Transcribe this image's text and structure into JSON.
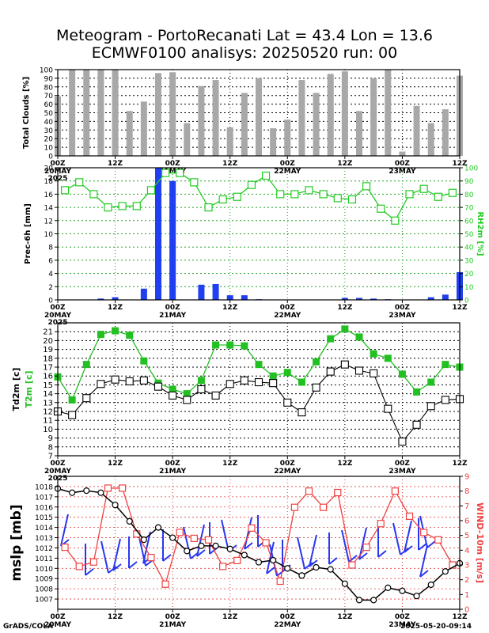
{
  "title_line1": "Meteogram - PortoRecanati Lat = 43.4 Lon = 13.6",
  "title_line2": "ECMWF0100 analisys: 20250520 run: 00",
  "footer_left": "GrADS/COLA",
  "footer_right": "2025-05-20-09:14",
  "colors": {
    "bar_gray": "#a8a8a8",
    "bar_blue": "#1f3ff0",
    "rh_green": "#22cc22",
    "t2m_green": "#22c022",
    "wind_blue": "#2838f0",
    "mslp_red": "#f04040",
    "grid_red": "#e04040",
    "grid_green": "#20a020"
  },
  "time_axis": {
    "tick_labels": [
      "00Z",
      "12Z",
      "00Z",
      "12Z",
      "00Z",
      "12Z",
      "00Z",
      "12Z"
    ],
    "date_labels": [
      [
        "20MAY",
        "2025"
      ],
      [
        "21MAY",
        ""
      ],
      [
        "22MAY",
        ""
      ],
      [
        "23MAY",
        ""
      ]
    ]
  },
  "chart_data": [
    {
      "type": "bar",
      "ylabel": "Total Clouds [%]",
      "ylim": [
        0,
        100
      ],
      "yticks": [
        "0",
        "10",
        "20",
        "30",
        "40",
        "50",
        "60",
        "70",
        "80",
        "90",
        "100"
      ],
      "values": [
        69,
        100,
        100,
        100,
        100,
        52,
        63,
        96,
        97,
        38,
        81,
        88,
        33,
        73,
        90,
        32,
        42,
        88,
        73,
        95,
        98,
        52,
        90,
        100,
        5,
        58,
        38,
        54,
        93
      ]
    },
    {
      "type": "bar",
      "ylabel": "Prec-6h [mm]",
      "ylim": [
        0,
        20
      ],
      "yticks": [
        "0",
        "2",
        "4",
        "6",
        "8",
        "10",
        "12",
        "14",
        "16",
        "18",
        "20"
      ],
      "values": [
        0,
        0,
        0,
        0.2,
        0.4,
        0,
        1.7,
        20,
        18,
        0,
        2.3,
        2.4,
        0.7,
        0.7,
        0.1,
        0,
        0,
        0,
        0,
        0,
        0.3,
        0.3,
        0.2,
        0.1,
        0,
        0,
        0.4,
        0.8,
        4.2
      ],
      "series2": {
        "type": "line",
        "name": "RH2m [%]",
        "ylim": [
          0,
          100
        ],
        "yticks": [
          "0",
          "10",
          "20",
          "30",
          "40",
          "50",
          "60",
          "70",
          "80",
          "90",
          "100"
        ],
        "values": [
          83,
          89,
          80,
          70,
          71,
          71,
          83,
          96,
          96,
          89,
          70,
          76,
          78,
          87,
          94,
          80,
          80,
          83,
          80,
          77,
          76,
          86,
          69,
          60,
          80,
          84,
          78,
          81
        ]
      }
    },
    {
      "type": "line",
      "ylabel": "Td2m [c]",
      "ylabel2": "T2m [c]",
      "ylim": [
        7,
        22
      ],
      "yticks": [
        "7",
        "8",
        "9",
        "10",
        "11",
        "12",
        "13",
        "14",
        "15",
        "16",
        "17",
        "18",
        "19",
        "20",
        "21"
      ],
      "series": [
        {
          "values": [
            12.0,
            11.6,
            13.5,
            15.1,
            15.6,
            15.4,
            15.5,
            14.8,
            13.8,
            13.3,
            14.5,
            13.8,
            15.1,
            15.5,
            15.3,
            15.2,
            13.0,
            11.9,
            14.7,
            16.5,
            17.3,
            16.6,
            16.3,
            12.3,
            8.6,
            10.5,
            12.6,
            13.3,
            13.4
          ]
        },
        {
          "values": [
            15.9,
            13.3,
            17.3,
            20.7,
            21.1,
            20.6,
            17.7,
            15.2,
            14.5,
            14.0,
            15.5,
            19.5,
            19.5,
            19.4,
            17.3,
            16.0,
            16.4,
            15.3,
            17.6,
            20.2,
            21.3,
            20.4,
            18.5,
            18.0,
            16.2,
            14.2,
            15.3,
            17.3,
            17.0
          ]
        }
      ]
    },
    {
      "type": "line",
      "ylabel": "mslp [mb]",
      "ylabel2": "WIND-10m [m/s]",
      "ylim": [
        1006,
        1019
      ],
      "yticks": [
        "1007",
        "1008",
        "1009",
        "1010",
        "1011",
        "1012",
        "1013",
        "1014",
        "1015",
        "1016",
        "1017",
        "1018"
      ],
      "y2lim": [
        0,
        9
      ],
      "y2ticks": [
        "0",
        "1",
        "2",
        "3",
        "4",
        "5",
        "6",
        "7",
        "8",
        "9"
      ],
      "series": [
        {
          "values": [
            1017.8,
            1017.4,
            1017.6,
            1017.4,
            1016.2,
            1014.6,
            1012.8,
            1014.0,
            1013.0,
            1011.7,
            1012.2,
            1012.2,
            1011.9,
            1011.3,
            1010.6,
            1010.8,
            1010.0,
            1009.3,
            1010.1,
            1009.9,
            1008.5,
            1006.9,
            1006.9,
            1008.1,
            1007.8,
            1007.3,
            1008.4,
            1009.7,
            1010.5
          ]
        },
        {
          "name": "WIND-10m [m/s]",
          "values": [
            4.2,
            2.9,
            3.2,
            8.2,
            8.2,
            5.1,
            3.5,
            1.7,
            5.2,
            4.8,
            4.7,
            2.9,
            3.3,
            5.5,
            4.5,
            1.9,
            6.9,
            8.0,
            6.9,
            7.9,
            3.0,
            4.2,
            5.8,
            8.0,
            6.3,
            5.2,
            4.7,
            3.0
          ]
        }
      ]
    }
  ]
}
